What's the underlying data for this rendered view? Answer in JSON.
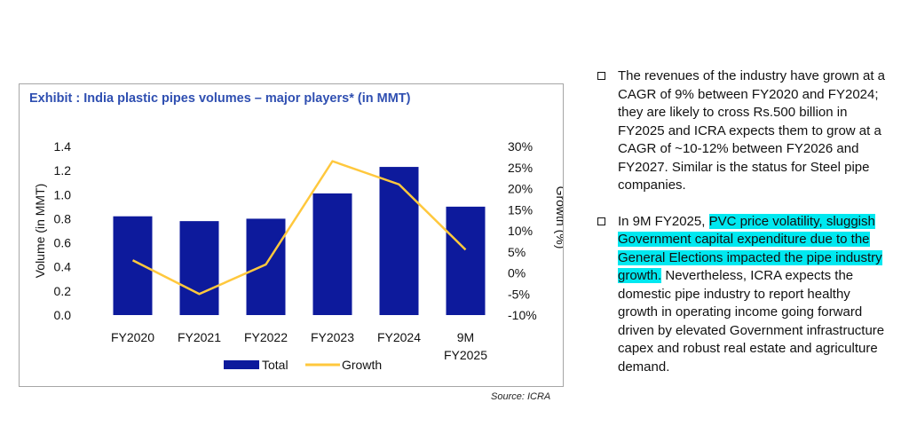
{
  "chart_data": {
    "type": "bar+line",
    "title": "Exhibit : India plastic pipes volumes – major players* (in MMT)",
    "categories": [
      "FY2020",
      "FY2021",
      "FY2022",
      "FY2023",
      "FY2024",
      "9M FY2025"
    ],
    "series": [
      {
        "name": "Total",
        "type": "bar",
        "axis": "left",
        "color": "#0d1a9c",
        "values": [
          0.82,
          0.78,
          0.8,
          1.01,
          1.23,
          0.9
        ]
      },
      {
        "name": "Growth",
        "type": "line",
        "axis": "right",
        "color": "#ffc83d",
        "values": [
          3.0,
          -5.0,
          2.0,
          26.5,
          21.0,
          5.5
        ]
      }
    ],
    "ylabel": "Volume (in MMT)",
    "y2label": "Growth (%)",
    "ylim": [
      0,
      1.4
    ],
    "y2lim": [
      -10,
      30
    ],
    "yticks": [
      "0.0",
      "0.2",
      "0.4",
      "0.6",
      "0.8",
      "1.0",
      "1.2",
      "1.4"
    ],
    "y2ticks": [
      "-10%",
      "-5%",
      "0%",
      "5%",
      "10%",
      "15%",
      "20%",
      "25%",
      "30%"
    ],
    "grid": false,
    "legend": "bottom-center"
  },
  "source": "Source: ICRA",
  "bullets": [
    [
      {
        "text": "The revenues of the industry have grown at a CAGR of 9% between FY2020 and FY2024; they are likely to cross Rs.500 billion in FY2025 and ICRA expects them to grow at a CAGR of ~10-12% between FY2026 and FY2027. Similar is the status for Steel pipe companies.",
        "highlight": false
      }
    ],
    [
      {
        "text": "In 9M FY2025, ",
        "highlight": false
      },
      {
        "text": "PVC price volatility, sluggish Government capital expenditure due to the General Elections impacted the pipe industry growth.",
        "highlight": true
      },
      {
        "text": " Nevertheless, ICRA expects the domestic pipe industry to report healthy growth in operating income going forward driven by elevated Government infrastructure capex and robust real estate and agriculture demand.",
        "highlight": false
      }
    ]
  ]
}
